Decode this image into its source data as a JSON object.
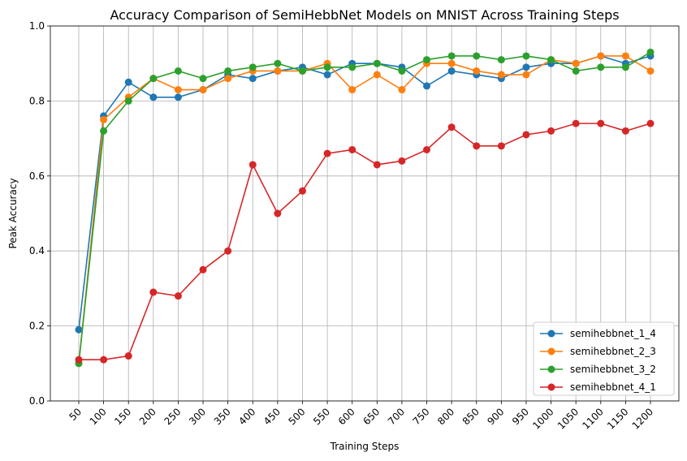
{
  "chart_data": {
    "type": "line",
    "title": "Accuracy Comparison of SemiHebbNet Models on MNIST Across Training Steps",
    "xlabel": "Training Steps",
    "ylabel": "Peak Accuracy",
    "ylim": [
      0.0,
      1.0
    ],
    "yticks": [
      "0.0",
      "0.2",
      "0.4",
      "0.6",
      "0.8",
      "1.0"
    ],
    "grid": true,
    "legend_position": "lower-right",
    "categories": [
      "50",
      "100",
      "150",
      "200",
      "250",
      "300",
      "350",
      "400",
      "450",
      "500",
      "550",
      "600",
      "650",
      "700",
      "750",
      "800",
      "850",
      "900",
      "950",
      "1000",
      "1050",
      "1100",
      "1150",
      "1200"
    ],
    "series": [
      {
        "name": "semihebbnet_1_4",
        "color": "#1f77b4",
        "values": [
          0.19,
          0.76,
          0.85,
          0.81,
          0.81,
          0.83,
          0.87,
          0.86,
          0.88,
          0.89,
          0.87,
          0.9,
          0.9,
          0.89,
          0.84,
          0.88,
          0.87,
          0.86,
          0.89,
          0.9,
          0.9,
          0.92,
          0.9,
          0.92
        ]
      },
      {
        "name": "semihebbnet_2_3",
        "color": "#ff7f0e",
        "values": [
          0.1,
          0.75,
          0.81,
          0.86,
          0.83,
          0.83,
          0.86,
          0.88,
          0.88,
          0.88,
          0.9,
          0.83,
          0.87,
          0.83,
          0.9,
          0.9,
          0.88,
          0.87,
          0.87,
          0.91,
          0.9,
          0.92,
          0.92,
          0.88
        ]
      },
      {
        "name": "semihebbnet_3_2",
        "color": "#2ca02c",
        "values": [
          0.1,
          0.72,
          0.8,
          0.86,
          0.88,
          0.86,
          0.88,
          0.89,
          0.9,
          0.88,
          0.89,
          0.89,
          0.9,
          0.88,
          0.91,
          0.92,
          0.92,
          0.91,
          0.92,
          0.91,
          0.88,
          0.89,
          0.89,
          0.93
        ]
      },
      {
        "name": "semihebbnet_4_1",
        "color": "#d62728",
        "values": [
          0.11,
          0.11,
          0.12,
          0.29,
          0.28,
          0.35,
          0.4,
          0.63,
          0.5,
          0.56,
          0.66,
          0.67,
          0.63,
          0.64,
          0.67,
          0.73,
          0.68,
          0.68,
          0.71,
          0.72,
          0.74,
          0.74,
          0.72,
          0.74
        ]
      }
    ]
  }
}
